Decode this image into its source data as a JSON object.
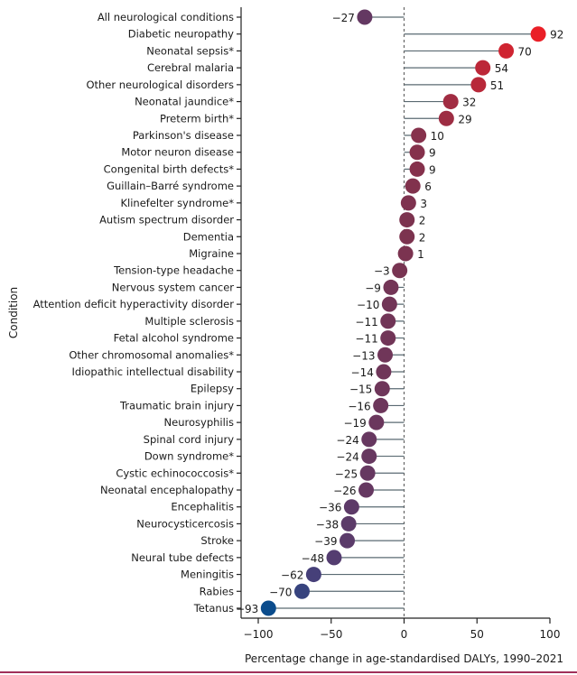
{
  "chart_data": {
    "type": "lollipop",
    "xlabel": "Percentage change in age-standardised DALYs, 1990–2021",
    "ylabel": "Condition",
    "xlim": [
      -110,
      110
    ],
    "xticks": [
      -100,
      -50,
      0,
      50,
      100
    ],
    "reference_line": 0,
    "categories": [
      "All neurological conditions",
      "Diabetic neuropathy",
      "Neonatal sepsis*",
      "Cerebral malaria",
      "Other neurological disorders",
      "Neonatal jaundice*",
      "Preterm birth*",
      "Parkinson's disease",
      "Motor neuron disease",
      "Congenital birth defects*",
      "Guillain–Barré syndrome",
      "Klinefelter syndrome*",
      "Autism spectrum disorder",
      "Dementia",
      "Migraine",
      "Tension-type headache",
      "Nervous system cancer",
      "Attention deficit hyperactivity disorder",
      "Multiple sclerosis",
      "Fetal alcohol syndrome",
      "Other chromosomal anomalies*",
      "Idiopathic intellectual disability",
      "Epilepsy",
      "Traumatic brain injury",
      "Neurosyphilis",
      "Spinal cord injury",
      "Down syndrome*",
      "Cystic echinococcosis*",
      "Neonatal encephalopathy",
      "Encephalitis",
      "Neurocysticercosis",
      "Stroke",
      "Neural tube defects",
      "Meningitis",
      "Rabies",
      "Tetanus"
    ],
    "values": [
      -27,
      92,
      70,
      54,
      51,
      32,
      29,
      10,
      9,
      9,
      6,
      3,
      2,
      2,
      1,
      -3,
      -9,
      -10,
      -11,
      -11,
      -13,
      -14,
      -15,
      -16,
      -19,
      -24,
      -24,
      -25,
      -26,
      -36,
      -38,
      -39,
      -48,
      -62,
      -70,
      -93
    ],
    "labels": [
      "−27",
      "92",
      "70",
      "54",
      "51",
      "32",
      "29",
      "10",
      "9",
      "9",
      "6",
      "3",
      "2",
      "2",
      "1",
      "−3",
      "−9",
      "−10",
      "−11",
      "−11",
      "−13",
      "−14",
      "−15",
      "−16",
      "−19",
      "−24",
      "−24",
      "−25",
      "−26",
      "−36",
      "−38",
      "−39",
      "−48",
      "−62",
      "−70",
      "−93"
    ],
    "tick_labels": [
      "−100",
      "−50",
      "0",
      "50",
      "100"
    ],
    "colors": {
      "low": "#0b4c8c",
      "mid_low": "#4a3f78",
      "mid": "#7a3350",
      "high": "#ea1f27",
      "stem": "#5a6a72",
      "axis": "#222222"
    }
  }
}
